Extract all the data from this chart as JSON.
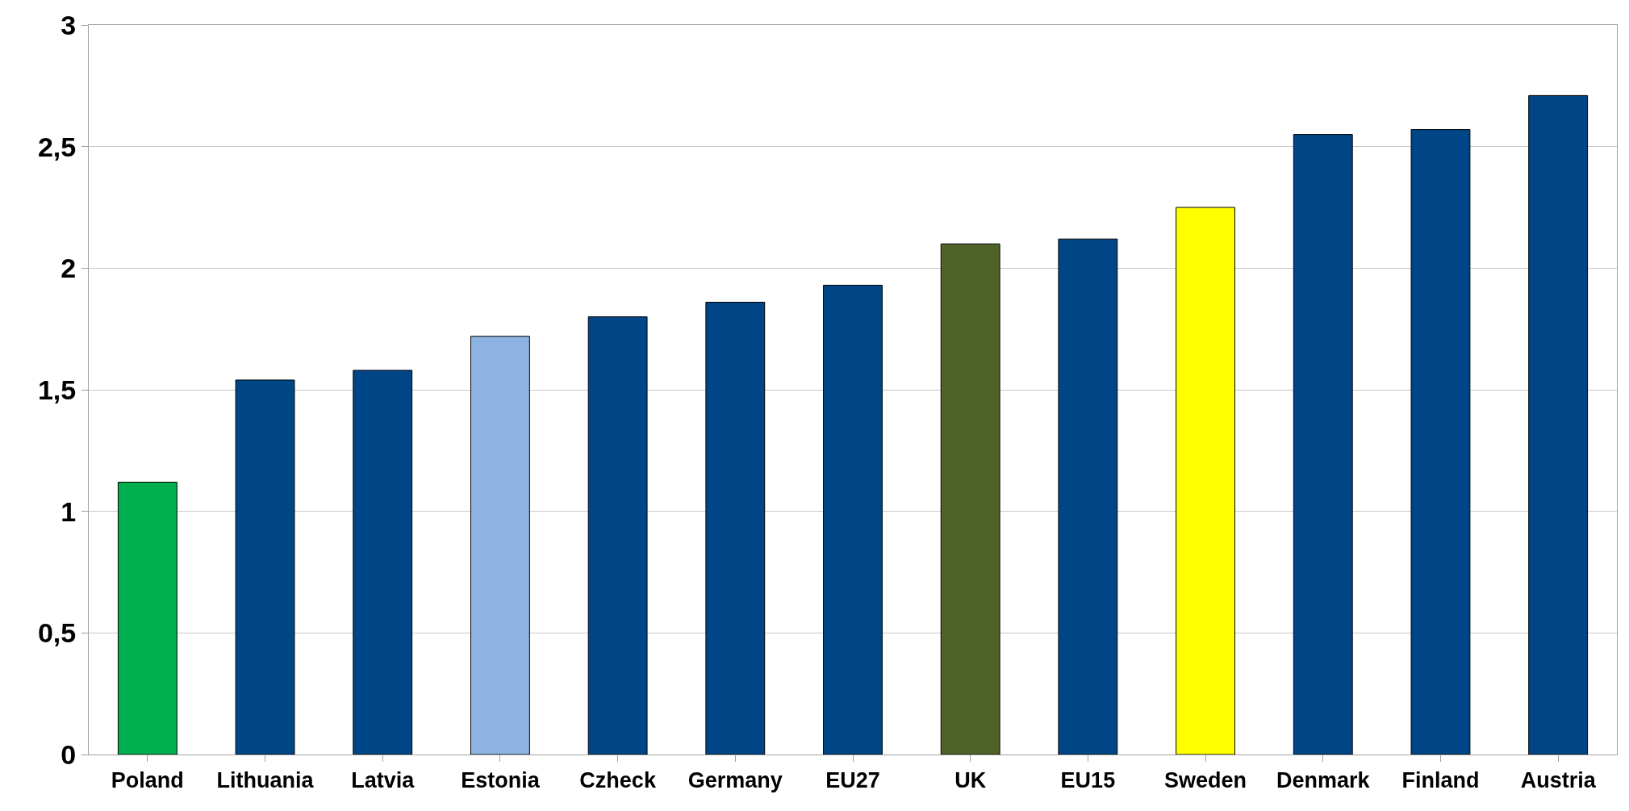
{
  "chart_data": {
    "type": "bar",
    "categories": [
      "Poland",
      "Lithuania",
      "Latvia",
      "Estonia",
      "Czheck",
      "Germany",
      "EU27",
      "UK",
      "EU15",
      "Sweden",
      "Denmark",
      "Finland",
      "Austria"
    ],
    "values": [
      1.12,
      1.54,
      1.58,
      1.72,
      1.8,
      1.86,
      1.93,
      2.1,
      2.12,
      2.25,
      2.55,
      2.57,
      2.71
    ],
    "colors": [
      "#00b050",
      "#004586",
      "#004586",
      "#8db3e2",
      "#004586",
      "#004586",
      "#004586",
      "#4f6228",
      "#004586",
      "#ffff00",
      "#004586",
      "#004586",
      "#004586"
    ],
    "ylim": [
      0,
      3
    ],
    "yticks": [
      0,
      {
        "value": 0.5,
        "label": "0,5"
      },
      1,
      {
        "value": 1.5,
        "label": "1,5"
      },
      2,
      {
        "value": 2.5,
        "label": "2,5"
      },
      3
    ],
    "grid": "y"
  }
}
